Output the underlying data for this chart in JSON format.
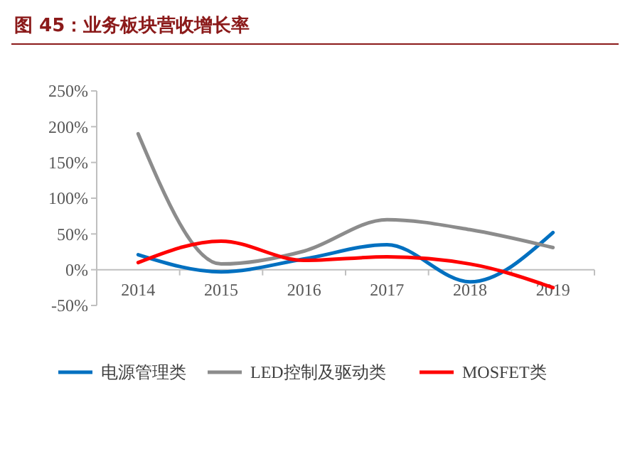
{
  "chart_data": {
    "type": "line",
    "title": "图 45：业务板块营收增长率",
    "categories": [
      "2014",
      "2015",
      "2016",
      "2017",
      "2018",
      "2019"
    ],
    "series": [
      {
        "name": "电源管理类",
        "color": "#0070c0",
        "values": [
          21,
          -3,
          15,
          35,
          -17,
          52
        ]
      },
      {
        "name": "LED控制及驱动类",
        "color": "#8c8c8c",
        "values": [
          190,
          8,
          26,
          70,
          56,
          31
        ]
      },
      {
        "name": "MOSFET类",
        "color": "#ff0000",
        "values": [
          10,
          40,
          13,
          18,
          8,
          -25
        ]
      }
    ],
    "ylim": [
      -50,
      250
    ],
    "yticks": [
      {
        "value": -50,
        "label": "-50%"
      },
      {
        "value": 0,
        "label": "0%"
      },
      {
        "value": 50,
        "label": "50%"
      },
      {
        "value": 100,
        "label": "100%"
      },
      {
        "value": 150,
        "label": "150%"
      },
      {
        "value": 200,
        "label": "200%"
      },
      {
        "value": 250,
        "label": "250%"
      }
    ],
    "legend": "bottom",
    "grid": false,
    "marker": "none",
    "line_style": "solid"
  }
}
